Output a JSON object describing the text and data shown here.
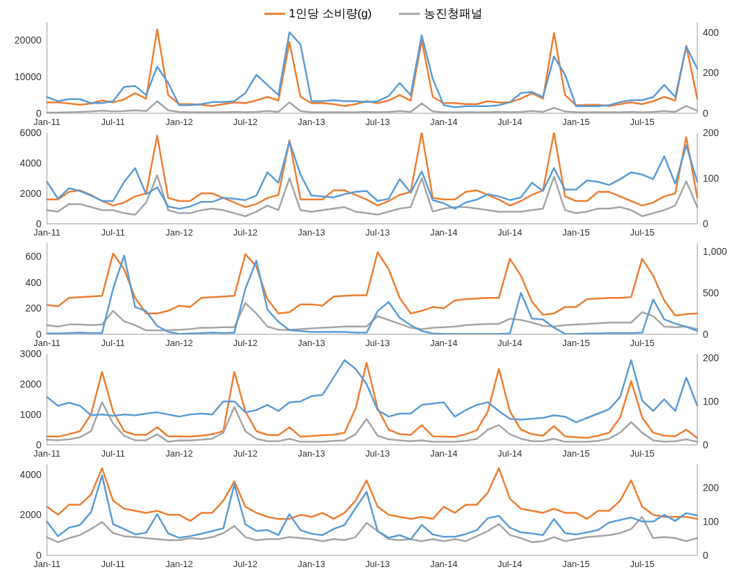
{
  "chart_data": [
    {
      "type": "line",
      "legend": "top",
      "categories": [
        "Jan-11",
        null,
        null,
        null,
        null,
        null,
        "Jul-11",
        null,
        null,
        null,
        null,
        null,
        "Jan-12",
        null,
        null,
        null,
        null,
        null,
        "Jul-12",
        null,
        null,
        null,
        null,
        null,
        "Jan-13",
        null,
        null,
        null,
        null,
        null,
        "Jul-13",
        null,
        null,
        null,
        null,
        null,
        "Jan-14",
        null,
        null,
        null,
        null,
        null,
        "Jul-14",
        null,
        null,
        null,
        null,
        null,
        "Jan-15",
        null,
        null,
        null,
        null,
        null,
        "Jul-15",
        null,
        null,
        null,
        null,
        null
      ],
      "ylim": [
        0,
        25000
      ],
      "yticks": [
        0,
        10000,
        20000
      ],
      "y2lim": [
        0,
        450
      ],
      "y2ticks": [
        0,
        200,
        400
      ],
      "series": [
        {
          "name": "1인당 소비량(g)",
          "color": "#ed7d31",
          "values": [
            3000,
            3000,
            2700,
            2300,
            2700,
            3500,
            3000,
            3800,
            5500,
            4000,
            23000,
            5000,
            2500,
            2500,
            2300,
            2000,
            2500,
            3000,
            2800,
            3500,
            4500,
            3500,
            19500,
            4500,
            2800,
            2800,
            2500,
            2000,
            2500,
            3300,
            2800,
            3500,
            5000,
            3500,
            20000,
            4500,
            2800,
            2800,
            2500,
            2500,
            3300,
            3000,
            3000,
            4000,
            5500,
            4000,
            22000,
            5000,
            2200,
            2300,
            2300,
            2000,
            2500,
            3000,
            2500,
            3300,
            4500,
            3500,
            18500,
            4000
          ]
        },
        {
          "name": "농진청패널",
          "color": "#a5a5a5",
          "values": [
            200,
            200,
            300,
            400,
            500,
            700,
            500,
            600,
            800,
            600,
            3300,
            800,
            400,
            300,
            300,
            300,
            300,
            400,
            300,
            400,
            600,
            400,
            3000,
            600,
            300,
            300,
            300,
            300,
            300,
            400,
            300,
            400,
            600,
            400,
            2700,
            500,
            300,
            300,
            300,
            300,
            300,
            400,
            300,
            400,
            600,
            400,
            1500,
            500,
            300,
            300,
            300,
            300,
            300,
            400,
            300,
            400,
            600,
            400,
            2000,
            700
          ]
        },
        {
          "color": "#5b9bd5",
          "axis": "y2",
          "values": [
            80,
            60,
            70,
            70,
            50,
            50,
            60,
            130,
            135,
            90,
            230,
            150,
            40,
            40,
            45,
            55,
            55,
            60,
            100,
            190,
            140,
            90,
            400,
            340,
            60,
            60,
            65,
            60,
            60,
            55,
            60,
            85,
            150,
            90,
            385,
            170,
            40,
            30,
            35,
            35,
            35,
            40,
            55,
            100,
            105,
            80,
            280,
            190,
            35,
            35,
            35,
            40,
            55,
            65,
            65,
            80,
            140,
            80,
            330,
            220
          ]
        }
      ]
    },
    {
      "type": "line",
      "categories": [
        "Jan-11",
        null,
        null,
        null,
        null,
        null,
        "Jul-11",
        null,
        null,
        null,
        null,
        null,
        "Jan-12",
        null,
        null,
        null,
        null,
        null,
        "Jul-12",
        null,
        null,
        null,
        null,
        null,
        "Jan-13",
        null,
        null,
        null,
        null,
        null,
        "Jul-13",
        null,
        null,
        null,
        null,
        null,
        "Jan-14",
        null,
        null,
        null,
        null,
        null,
        "Jul-14",
        null,
        null,
        null,
        null,
        null,
        "Jan-15",
        null,
        null,
        null,
        null,
        null,
        "Jul-15",
        null,
        null,
        null,
        null,
        null
      ],
      "ylim": [
        0,
        6000
      ],
      "yticks": [
        0,
        2000,
        4000,
        6000
      ],
      "y2lim": [
        0,
        200
      ],
      "y2ticks": [
        0,
        100,
        200
      ],
      "series": [
        {
          "color": "#ed7d31",
          "values": [
            1600,
            1600,
            2100,
            2200,
            1900,
            1500,
            1200,
            1400,
            1800,
            2000,
            5800,
            1700,
            1500,
            1500,
            2000,
            2000,
            1700,
            1400,
            1100,
            1300,
            1700,
            1900,
            5500,
            1600,
            1600,
            1600,
            2200,
            2200,
            1900,
            1600,
            1200,
            1500,
            1900,
            2100,
            6000,
            1700,
            1600,
            1600,
            2100,
            2200,
            1900,
            1600,
            1200,
            1500,
            1900,
            2200,
            6000,
            1800,
            1500,
            1500,
            2100,
            2100,
            1800,
            1500,
            1200,
            1400,
            1800,
            2000,
            5700,
            1700
          ]
        },
        {
          "color": "#a5a5a5",
          "values": [
            900,
            800,
            1300,
            1300,
            1100,
            900,
            900,
            700,
            600,
            1400,
            3200,
            900,
            700,
            700,
            900,
            1000,
            900,
            700,
            500,
            800,
            1200,
            900,
            3000,
            900,
            800,
            900,
            1000,
            1100,
            800,
            700,
            600,
            800,
            1000,
            1100,
            3000,
            800,
            1000,
            1100,
            1100,
            1000,
            900,
            800,
            800,
            800,
            900,
            1000,
            3100,
            900,
            700,
            800,
            1000,
            1000,
            1100,
            900,
            500,
            700,
            900,
            1200,
            2800,
            1100
          ]
        },
        {
          "color": "#5b9bd5",
          "axis": "y2",
          "values": [
            92,
            55,
            78,
            72,
            62,
            50,
            50,
            92,
            122,
            65,
            80,
            38,
            33,
            38,
            48,
            48,
            57,
            55,
            52,
            62,
            113,
            90,
            180,
            108,
            62,
            60,
            58,
            65,
            70,
            72,
            50,
            55,
            98,
            68,
            115,
            52,
            45,
            33,
            47,
            53,
            65,
            60,
            52,
            58,
            90,
            72,
            122,
            75,
            75,
            95,
            92,
            85,
            98,
            113,
            108,
            98,
            148,
            88,
            172,
            92
          ]
        }
      ]
    },
    {
      "type": "line",
      "categories": [
        "Jan-11",
        null,
        null,
        null,
        null,
        null,
        "Jul-11",
        null,
        null,
        null,
        null,
        null,
        "Jan-12",
        null,
        null,
        null,
        null,
        null,
        "Jul-12",
        null,
        null,
        null,
        null,
        null,
        "Jan-13",
        null,
        null,
        null,
        null,
        null,
        "Jul-13",
        null,
        null,
        null,
        null,
        null,
        "Jan-14",
        null,
        null,
        null,
        null,
        null,
        "Jul-14",
        null,
        null,
        null,
        null,
        null,
        "Jan-15",
        null,
        null,
        null,
        null,
        null,
        "Jul-15",
        null,
        null,
        null,
        null,
        null
      ],
      "ylim": [
        0,
        700
      ],
      "yticks": [
        0,
        200,
        400,
        600
      ],
      "y2lim": [
        0,
        1100
      ],
      "y2ticks": [
        0,
        500,
        {
          "value": 1000,
          "label": "1,000"
        }
      ],
      "series": [
        {
          "color": "#ed7d31",
          "values": [
            225,
            215,
            280,
            285,
            290,
            295,
            620,
            500,
            280,
            160,
            160,
            180,
            220,
            210,
            280,
            285,
            290,
            295,
            615,
            520,
            270,
            160,
            170,
            230,
            230,
            220,
            290,
            295,
            300,
            300,
            630,
            500,
            280,
            160,
            180,
            210,
            200,
            260,
            270,
            275,
            280,
            280,
            580,
            450,
            250,
            150,
            160,
            210,
            210,
            270,
            275,
            280,
            280,
            285,
            580,
            450,
            260,
            145,
            155,
            160
          ]
        },
        {
          "color": "#a5a5a5",
          "values": [
            70,
            60,
            75,
            75,
            70,
            75,
            180,
            100,
            70,
            30,
            30,
            30,
            35,
            40,
            50,
            50,
            55,
            55,
            240,
            160,
            60,
            35,
            35,
            40,
            45,
            50,
            55,
            60,
            60,
            60,
            140,
            110,
            80,
            50,
            40,
            50,
            55,
            60,
            70,
            75,
            80,
            80,
            120,
            110,
            90,
            65,
            60,
            70,
            75,
            80,
            85,
            90,
            90,
            90,
            170,
            140,
            60,
            55,
            60,
            40
          ]
        },
        {
          "color": "#5b9bd5",
          "axis": "y2",
          "values": [
            10,
            10,
            15,
            20,
            15,
            15,
            550,
            950,
            330,
            280,
            100,
            30,
            5,
            10,
            15,
            20,
            15,
            20,
            550,
            890,
            300,
            150,
            50,
            40,
            30,
            30,
            30,
            30,
            20,
            20,
            280,
            390,
            200,
            110,
            40,
            10,
            5,
            5,
            5,
            5,
            5,
            5,
            10,
            500,
            190,
            180,
            80,
            5,
            5,
            10,
            10,
            15,
            15,
            15,
            20,
            420,
            180,
            130,
            90,
            40
          ]
        }
      ]
    },
    {
      "type": "line",
      "categories": [
        "Jan-11",
        null,
        null,
        null,
        null,
        null,
        "Jul-11",
        null,
        null,
        null,
        null,
        null,
        "Jan-12",
        null,
        null,
        null,
        null,
        null,
        "Jul-12",
        null,
        null,
        null,
        null,
        null,
        "Jan-13",
        null,
        null,
        null,
        null,
        null,
        "Jul-13",
        null,
        null,
        null,
        null,
        null,
        "Jan-14",
        null,
        null,
        null,
        null,
        null,
        "Jul-14",
        null,
        null,
        null,
        null,
        null,
        "Jan-15",
        null,
        null,
        null,
        null,
        null,
        "Jul-15",
        null,
        null,
        null,
        null,
        null
      ],
      "ylim": [
        0,
        3000
      ],
      "yticks": [
        0,
        1000,
        2000,
        3000
      ],
      "y2lim": [
        0,
        210
      ],
      "y2ticks": [
        0,
        100,
        200
      ],
      "series": [
        {
          "color": "#ed7d31",
          "values": [
            280,
            270,
            350,
            450,
            1000,
            2400,
            1100,
            450,
            330,
            330,
            580,
            280,
            280,
            270,
            300,
            350,
            450,
            2400,
            1100,
            450,
            330,
            320,
            580,
            270,
            290,
            320,
            330,
            400,
            1200,
            2700,
            1200,
            500,
            350,
            330,
            650,
            280,
            270,
            260,
            350,
            480,
            1100,
            2500,
            1100,
            500,
            350,
            300,
            620,
            280,
            250,
            230,
            300,
            400,
            900,
            2100,
            900,
            400,
            300,
            280,
            500,
            230
          ]
        },
        {
          "color": "#a5a5a5",
          "values": [
            170,
            150,
            180,
            250,
            450,
            1400,
            700,
            300,
            150,
            150,
            350,
            100,
            150,
            140,
            170,
            200,
            400,
            1250,
            450,
            200,
            120,
            120,
            200,
            100,
            100,
            100,
            130,
            150,
            350,
            850,
            300,
            180,
            150,
            120,
            150,
            100,
            100,
            100,
            130,
            200,
            500,
            650,
            350,
            200,
            120,
            120,
            200,
            100,
            100,
            100,
            130,
            200,
            400,
            750,
            400,
            150,
            100,
            120,
            180,
            100
          ]
        },
        {
          "color": "#5b9bd5",
          "axis": "y2",
          "values": [
            110,
            90,
            97,
            90,
            68,
            70,
            67,
            70,
            68,
            72,
            75,
            70,
            65,
            70,
            72,
            70,
            100,
            100,
            75,
            80,
            92,
            78,
            98,
            100,
            112,
            115,
            155,
            195,
            175,
            140,
            80,
            65,
            72,
            72,
            92,
            95,
            98,
            65,
            80,
            92,
            98,
            78,
            60,
            58,
            60,
            62,
            68,
            65,
            52,
            62,
            72,
            82,
            110,
            195,
            102,
            78,
            105,
            78,
            155,
            90
          ]
        }
      ]
    },
    {
      "type": "line",
      "categories": [
        "Jan-11",
        null,
        null,
        null,
        null,
        null,
        "Jul-11",
        null,
        null,
        null,
        null,
        null,
        "Jan-12",
        null,
        null,
        null,
        null,
        null,
        "Jul-12",
        null,
        null,
        null,
        null,
        null,
        "Jan-13",
        null,
        null,
        null,
        null,
        null,
        "Jul-13",
        null,
        null,
        null,
        null,
        null,
        "Jan-14",
        null,
        null,
        null,
        null,
        null,
        "Jul-14",
        null,
        null,
        null,
        null,
        null,
        "Jan-15",
        null,
        null,
        null,
        null,
        null,
        "Jul-15",
        null,
        null,
        null,
        null,
        null
      ],
      "ylim": [
        0,
        4500
      ],
      "yticks": [
        0,
        2000,
        4000
      ],
      "y2lim": [
        0,
        270
      ],
      "y2ticks": [
        0,
        100,
        200
      ],
      "series": [
        {
          "color": "#ed7d31",
          "values": [
            2400,
            2000,
            2500,
            2500,
            3000,
            4300,
            2700,
            2300,
            2200,
            2100,
            2200,
            2000,
            2000,
            1700,
            2100,
            2100,
            2700,
            3650,
            2400,
            2100,
            1900,
            1800,
            1800,
            2000,
            1900,
            2100,
            1800,
            2100,
            2700,
            3700,
            2400,
            2000,
            1900,
            1800,
            1900,
            1800,
            2400,
            2100,
            2500,
            2500,
            3100,
            4300,
            2800,
            2300,
            2200,
            2100,
            2300,
            2100,
            2100,
            1800,
            2200,
            2200,
            2700,
            3700,
            2400,
            2000,
            1900,
            1900,
            1900,
            1800
          ]
        },
        {
          "color": "#a5a5a5",
          "values": [
            900,
            650,
            850,
            1000,
            1300,
            1650,
            1100,
            950,
            900,
            850,
            800,
            750,
            750,
            850,
            800,
            900,
            1100,
            1450,
            900,
            750,
            800,
            800,
            900,
            850,
            800,
            700,
            800,
            750,
            900,
            1600,
            1200,
            800,
            750,
            800,
            700,
            800,
            700,
            800,
            700,
            950,
            1200,
            1550,
            1000,
            850,
            650,
            700,
            900,
            700,
            800,
            900,
            950,
            1000,
            1100,
            1300,
            1900,
            850,
            900,
            850,
            700,
            850
          ]
        },
        {
          "color": "#5b9bd5",
          "axis": "y2",
          "values": [
            100,
            57,
            82,
            90,
            128,
            237,
            92,
            78,
            62,
            67,
            122,
            65,
            52,
            57,
            64,
            72,
            80,
            210,
            92,
            72,
            75,
            60,
            122,
            75,
            64,
            60,
            78,
            90,
            140,
            188,
            72,
            52,
            60,
            47,
            90,
            62,
            55,
            55,
            63,
            75,
            110,
            117,
            82,
            68,
            65,
            60,
            108,
            66,
            62,
            68,
            75,
            97,
            105,
            112,
            100,
            100,
            120,
            102,
            125,
            118
          ]
        }
      ]
    }
  ]
}
